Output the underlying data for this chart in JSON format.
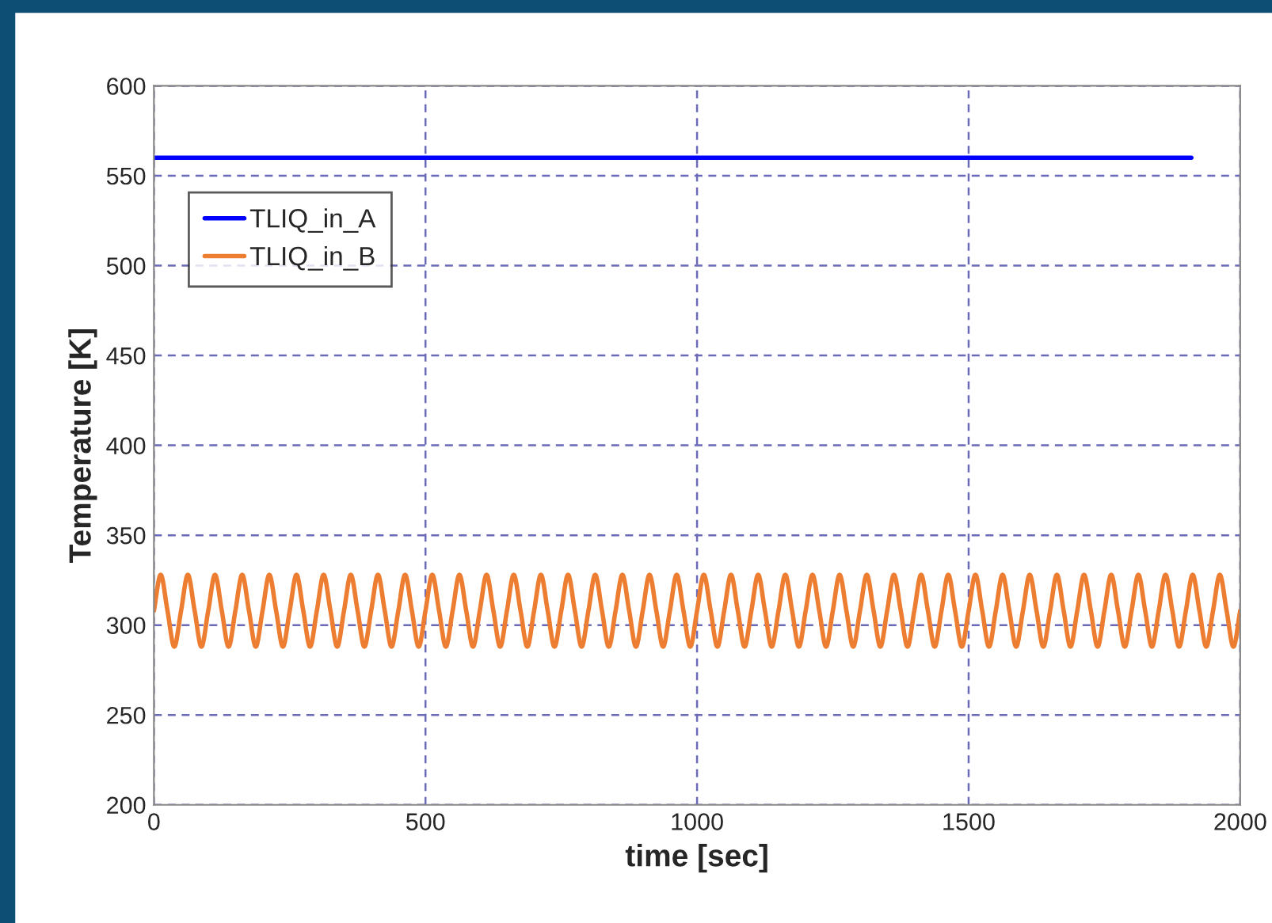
{
  "chart_data": {
    "type": "line",
    "xlabel": "time [sec]",
    "ylabel": "Temperature [K]",
    "xlim": [
      0,
      2000
    ],
    "xticks": [
      0,
      500,
      1000,
      1500,
      2000
    ],
    "ylim": [
      200,
      600
    ],
    "yticks": [
      200,
      250,
      300,
      350,
      400,
      450,
      500,
      550,
      600
    ],
    "grid": true,
    "legend": "top left",
    "marker": "none",
    "line_style": "solid",
    "series": [
      {
        "name": "TLIQ_in_A",
        "color": "#0000ff",
        "x": [
          0,
          1910
        ],
        "values": [
          560,
          560
        ]
      },
      {
        "name": "TLIQ_in_B",
        "color": "#ed7d31",
        "x": [
          0,
          12.5,
          25,
          37.5,
          50,
          62.5,
          75,
          87.5,
          100,
          112.5,
          125,
          137.5,
          150,
          162.5,
          175,
          187.5,
          200,
          212.5,
          225,
          237.5,
          250,
          262.5,
          275,
          287.5,
          300,
          312.5,
          325,
          337.5,
          350,
          362.5,
          375,
          387.5,
          400,
          412.5,
          425,
          437.5,
          450,
          462.5,
          475,
          487.5,
          500,
          512.5,
          525,
          537.5,
          550,
          562.5,
          575,
          587.5,
          600,
          612.5,
          625,
          637.5,
          650,
          662.5,
          675,
          687.5,
          700,
          712.5,
          725,
          737.5,
          750,
          762.5,
          775,
          787.5,
          800,
          812.5,
          825,
          837.5,
          850,
          862.5,
          875,
          887.5,
          900,
          912.5,
          925,
          937.5,
          950,
          962.5,
          975,
          987.5,
          1000,
          1012.5,
          1025,
          1037.5,
          1050,
          1062.5,
          1075,
          1087.5,
          1100,
          1112.5,
          1125,
          1137.5,
          1150,
          1162.5,
          1175,
          1187.5,
          1200,
          1212.5,
          1225,
          1237.5,
          1250,
          1262.5,
          1275,
          1287.5,
          1300,
          1312.5,
          1325,
          1337.5,
          1350,
          1362.5,
          1375,
          1387.5,
          1400,
          1412.5,
          1425,
          1437.5,
          1450,
          1462.5,
          1475,
          1487.5,
          1500,
          1512.5,
          1525,
          1537.5,
          1550,
          1562.5,
          1575,
          1587.5,
          1600,
          1612.5,
          1625,
          1637.5,
          1650,
          1662.5,
          1675,
          1687.5,
          1700,
          1712.5,
          1725,
          1737.5,
          1750,
          1762.5,
          1775,
          1787.5,
          1800,
          1812.5,
          1825,
          1837.5,
          1850,
          1862.5,
          1875,
          1887.5,
          1900,
          1912.5,
          1925,
          1937.5,
          1950,
          1962.5,
          1975,
          1987.5,
          2000
        ],
        "values": [
          308,
          328,
          308,
          288,
          308,
          328,
          308,
          288,
          308,
          328,
          308,
          288,
          308,
          328,
          308,
          288,
          308,
          328,
          308,
          288,
          308,
          328,
          308,
          288,
          308,
          328,
          308,
          288,
          308,
          328,
          308,
          288,
          308,
          328,
          308,
          288,
          308,
          328,
          308,
          288,
          308,
          328,
          308,
          288,
          308,
          328,
          308,
          288,
          308,
          328,
          308,
          288,
          308,
          328,
          308,
          288,
          308,
          328,
          308,
          288,
          308,
          328,
          308,
          288,
          308,
          328,
          308,
          288,
          308,
          328,
          308,
          288,
          308,
          328,
          308,
          288,
          308,
          328,
          308,
          288,
          308,
          328,
          308,
          288,
          308,
          328,
          308,
          288,
          308,
          328,
          308,
          288,
          308,
          328,
          308,
          288,
          308,
          328,
          308,
          288,
          308,
          328,
          308,
          288,
          308,
          328,
          308,
          288,
          308,
          328,
          308,
          288,
          308,
          328,
          308,
          288,
          308,
          328,
          308,
          288,
          308,
          328,
          308,
          288,
          308,
          328,
          308,
          288,
          308,
          328,
          308,
          288,
          308,
          328,
          308,
          288,
          308,
          328,
          308,
          288,
          308,
          328,
          308,
          288,
          308,
          328,
          308,
          288,
          308,
          328,
          308,
          288,
          308,
          328,
          308,
          288,
          308,
          328,
          308,
          288,
          308
        ]
      }
    ]
  }
}
